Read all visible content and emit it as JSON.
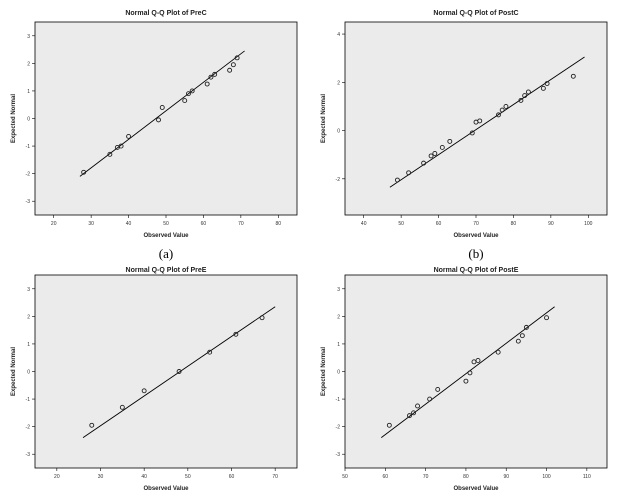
{
  "chart_data": [
    {
      "type": "scatter",
      "caption": "(a)",
      "title": "Normal Q-Q Plot of PreC",
      "xlabel": "Observed Value",
      "ylabel": "Expected Normal",
      "xlim": [
        15,
        85
      ],
      "ylim": [
        -3.5,
        3.5
      ],
      "xticks": [
        20,
        30,
        40,
        50,
        60,
        70,
        80
      ],
      "yticks": [
        -3,
        -2,
        -1,
        0,
        1,
        2,
        3
      ],
      "line": [
        [
          27,
          -2.1
        ],
        [
          71,
          2.45
        ]
      ],
      "points": [
        [
          28,
          -1.95
        ],
        [
          35,
          -1.3
        ],
        [
          37,
          -1.05
        ],
        [
          38,
          -1.0
        ],
        [
          40,
          -0.65
        ],
        [
          48,
          -0.05
        ],
        [
          49,
          0.4
        ],
        [
          55,
          0.65
        ],
        [
          56,
          0.9
        ],
        [
          57,
          1.0
        ],
        [
          61,
          1.25
        ],
        [
          62,
          1.5
        ],
        [
          63,
          1.6
        ],
        [
          67,
          1.75
        ],
        [
          68,
          1.95
        ],
        [
          69,
          2.2
        ]
      ],
      "grid": false
    },
    {
      "type": "scatter",
      "caption": "(b)",
      "title": "Normal Q-Q Plot of PostC",
      "xlabel": "Observed Value",
      "ylabel": "Expected Normal",
      "xlim": [
        35,
        105
      ],
      "ylim": [
        -3.5,
        4.5
      ],
      "xticks": [
        40,
        50,
        60,
        70,
        80,
        90,
        100
      ],
      "yticks": [
        -2,
        0,
        2,
        4
      ],
      "line": [
        [
          47,
          -2.35
        ],
        [
          99,
          3.05
        ]
      ],
      "points": [
        [
          49,
          -2.05
        ],
        [
          52,
          -1.75
        ],
        [
          56,
          -1.35
        ],
        [
          58,
          -1.05
        ],
        [
          59,
          -0.95
        ],
        [
          61,
          -0.7
        ],
        [
          63,
          -0.45
        ],
        [
          69,
          -0.1
        ],
        [
          70,
          0.35
        ],
        [
          71,
          0.4
        ],
        [
          76,
          0.65
        ],
        [
          77,
          0.85
        ],
        [
          78,
          1.0
        ],
        [
          82,
          1.25
        ],
        [
          83,
          1.45
        ],
        [
          84,
          1.6
        ],
        [
          88,
          1.75
        ],
        [
          89,
          1.95
        ],
        [
          96,
          2.25
        ]
      ],
      "grid": false
    },
    {
      "type": "scatter",
      "title": "Normal Q-Q Plot of PreE",
      "xlabel": "Observed Value",
      "ylabel": "Expected Normal",
      "xlim": [
        15,
        75
      ],
      "ylim": [
        -3.5,
        3.5
      ],
      "xticks": [
        20,
        30,
        40,
        50,
        60,
        70
      ],
      "yticks": [
        -3,
        -2,
        -1,
        0,
        1,
        2,
        3
      ],
      "line": [
        [
          26,
          -2.4
        ],
        [
          70,
          2.35
        ]
      ],
      "points": [
        [
          28,
          -1.95
        ],
        [
          35,
          -1.3
        ],
        [
          40,
          -0.7
        ],
        [
          48,
          0.0
        ],
        [
          55,
          0.7
        ],
        [
          61,
          1.35
        ],
        [
          67,
          1.95
        ]
      ],
      "grid": false
    },
    {
      "type": "scatter",
      "title": "Normal Q-Q Plot of PostE",
      "xlabel": "Observed Value",
      "ylabel": "Expected Normal",
      "xlim": [
        50,
        115
      ],
      "ylim": [
        -3.5,
        3.5
      ],
      "xticks": [
        50,
        60,
        70,
        80,
        90,
        100,
        110
      ],
      "yticks": [
        -3,
        -2,
        -1,
        0,
        1,
        2,
        3
      ],
      "line": [
        [
          59,
          -2.4
        ],
        [
          102,
          2.35
        ]
      ],
      "points": [
        [
          61,
          -1.95
        ],
        [
          66,
          -1.6
        ],
        [
          67,
          -1.5
        ],
        [
          68,
          -1.25
        ],
        [
          71,
          -1.0
        ],
        [
          73,
          -0.65
        ],
        [
          80,
          -0.35
        ],
        [
          81,
          -0.05
        ],
        [
          82,
          0.35
        ],
        [
          83,
          0.4
        ],
        [
          88,
          0.7
        ],
        [
          93,
          1.1
        ],
        [
          94,
          1.3
        ],
        [
          95,
          1.6
        ],
        [
          100,
          1.95
        ]
      ],
      "grid": false
    }
  ]
}
